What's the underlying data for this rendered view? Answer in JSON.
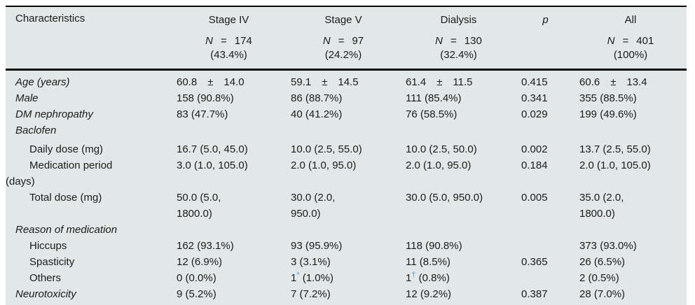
{
  "table": {
    "header": {
      "characteristics_label": "Characteristics",
      "n_symbol": "N",
      "eq_symbol": "=",
      "p_label": "p",
      "groups": [
        {
          "label": "Stage IV",
          "n": "174",
          "pct": "(43.4%)"
        },
        {
          "label": "Stage V",
          "n": "97",
          "pct": "(24.2%)"
        },
        {
          "label": "Dialysis",
          "n": "130",
          "pct": "(32.4%)"
        },
        {
          "label": "All",
          "n": "401",
          "pct": "(100%)"
        }
      ]
    },
    "footnote_marker_color": "#4aa3da",
    "rows": [
      {
        "label": "Age (years)",
        "level": 1,
        "italic": true,
        "cells": [
          "60.8 ± 14.0",
          "59.1 ± 14.5",
          "61.4 ± 11.5",
          "0.415",
          "60.6 ± 13.4"
        ]
      },
      {
        "label": "Male",
        "level": 1,
        "italic": true,
        "cells": [
          "158 (90.8%)",
          "86 (88.7%)",
          "111 (85.4%)",
          "0.341",
          "355 (88.5%)"
        ]
      },
      {
        "label": "DM nephropathy",
        "level": 1,
        "italic": true,
        "cells": [
          "83 (47.7%)",
          "40 (41.2%)",
          "76 (58.5%)",
          "0.029",
          "199 (49.6%)"
        ]
      },
      {
        "label": "Baclofen",
        "level": 1,
        "italic": true,
        "cells": [
          "",
          "",
          "",
          "",
          ""
        ]
      },
      {
        "label": "Daily dose (mg)",
        "level": 2,
        "italic": false,
        "spacer": true,
        "cells": [
          "16.7 (5.0, 45.0)",
          "10.0 (2.5, 55.0)",
          "10.0 (2.5, 50.0)",
          "0.002",
          "13.7 (2.5, 55.0)"
        ]
      },
      {
        "label": "Medication period\n(days)",
        "level": 2,
        "italic": false,
        "cells": [
          "3.0 (1.0, 105.0)",
          "2.0 (1.0, 95.0)",
          "2.0 (1.0, 95.0)",
          "0.184",
          "2.0 (1.0, 105.0)"
        ]
      },
      {
        "label": "Total dose (mg)",
        "level": 2,
        "italic": false,
        "cells": [
          "50.0 (5.0,\n1800.0)",
          "30.0 (2.0,\n950.0)",
          "30.0 (5.0, 950.0)",
          "0.005",
          "35.0 (2.0,\n1800.0)"
        ]
      },
      {
        "label": "Reason of medication",
        "level": 1,
        "italic": true,
        "cells": [
          "",
          "",
          "",
          "",
          ""
        ]
      },
      {
        "label": "Hiccups",
        "level": 2,
        "italic": false,
        "cells": [
          "162 (93.1%)",
          "93 (95.9%)",
          "118 (90.8%)",
          "",
          "373 (93.0%)"
        ]
      },
      {
        "label": "Spasticity",
        "level": 2,
        "italic": false,
        "cells": [
          "12 (6.9%)",
          "3 (3.1%)",
          "11 (8.5%)",
          "0.365",
          "26 (6.5%)"
        ]
      },
      {
        "label": "Others",
        "level": 2,
        "italic": false,
        "cells": [
          "0 (0.0%)",
          {
            "pre": "1",
            "sup": "*",
            "post": " (1.0%)"
          },
          {
            "pre": "1",
            "sup": "†",
            "post": " (0.8%)"
          },
          "",
          "2 (0.5%)"
        ]
      },
      {
        "label": "Neurotoxicity",
        "level": 1,
        "italic": true,
        "cells": [
          "9 (5.2%)",
          "7 (7.2%)",
          "12 (9.2%)",
          "0.387",
          "28 (7.0%)"
        ]
      }
    ]
  }
}
